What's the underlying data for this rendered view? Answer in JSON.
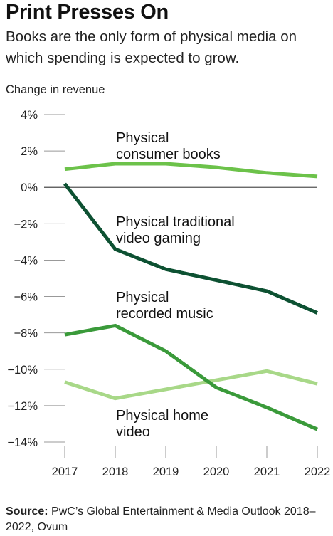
{
  "chart_data": {
    "type": "line",
    "title": "Print Presses On",
    "subtitle": "Books are the only form of physical media on which spending is expected to grow.",
    "ylabel": "Change in revenue",
    "xlabel": "",
    "x": [
      "2017",
      "2018",
      "2019",
      "2020",
      "2021",
      "2022"
    ],
    "ylim": [
      -14,
      4
    ],
    "yticks": [
      "4%",
      "2%",
      "0%",
      "−2%",
      "−4%",
      "−6%",
      "−8%",
      "−10%",
      "−12%",
      "−14%"
    ],
    "series": [
      {
        "name_lines": [
          "Physical",
          "consumer books"
        ],
        "color": "#6cc24a",
        "values": [
          1.0,
          1.3,
          1.3,
          1.1,
          0.8,
          0.6
        ]
      },
      {
        "name_lines": [
          "Physical traditional",
          "video gaming"
        ],
        "color": "#0d5132",
        "values": [
          0.2,
          -3.4,
          -4.5,
          -5.1,
          -5.7,
          -6.9
        ]
      },
      {
        "name_lines": [
          "Physical",
          "recorded music"
        ],
        "color": "#3a9a3a",
        "values": [
          -8.1,
          -7.6,
          -9.0,
          -11.0,
          -12.1,
          -13.3
        ]
      },
      {
        "name_lines": [
          "Physical home",
          "video"
        ],
        "color": "#a8d888",
        "values": [
          -10.7,
          -11.6,
          -11.1,
          -10.6,
          -10.1,
          -10.8
        ]
      }
    ]
  },
  "source": {
    "label": "Source:",
    "text": "PwC’s Global Entertainment & Media Outlook 2018–2022, Ovum"
  }
}
